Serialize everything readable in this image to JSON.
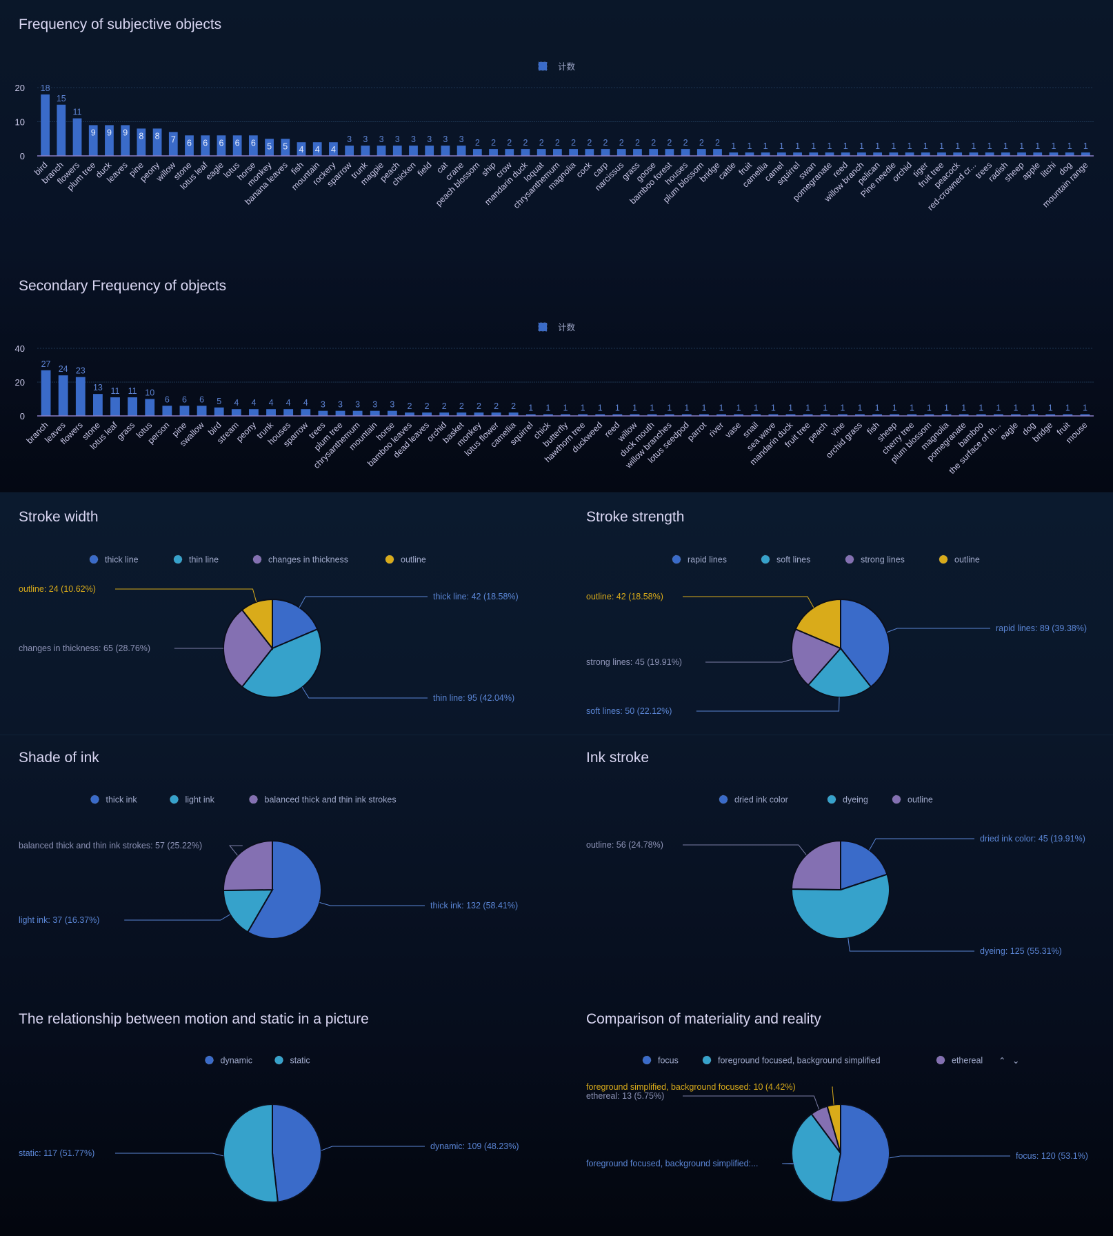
{
  "colors": {
    "blue": "#3a6bc9",
    "cyan": "#36a2cb",
    "purple": "#8470b2",
    "yellow": "#d9ab1a",
    "label_blue": "#5b86d6",
    "label_gray": "#8d93b6"
  },
  "chart_data": [
    {
      "id": "bar1",
      "type": "bar",
      "title": "Frequency of subjective objects",
      "legend": [
        "计数"
      ],
      "legend_position": "top-center",
      "ylim": [
        0,
        20
      ],
      "yticks": [
        0,
        10,
        20
      ],
      "grid": true,
      "categories": [
        "bird",
        "branch",
        "flowers",
        "plum tree",
        "duck",
        "leaves",
        "pine",
        "peony",
        "willow",
        "stone",
        "lotus leaf",
        "eagle",
        "lotus",
        "horse",
        "monkey",
        "banana leaves",
        "fish",
        "mountain",
        "rockery",
        "sparrow",
        "trunk",
        "magpie",
        "peach",
        "chicken",
        "field",
        "cat",
        "crane",
        "peach blossom",
        "ship",
        "crow",
        "mandarin duck",
        "loquat",
        "chrysanthemum",
        "magnolia",
        "cock",
        "carp",
        "narcissus",
        "grass",
        "goose",
        "bamboo forest",
        "houses",
        "plum blossom",
        "bridge",
        "cattle",
        "fruit",
        "camellia",
        "camel",
        "squirrel",
        "swan",
        "pomegranate",
        "reed",
        "willow branch",
        "pelican",
        "Pine needle",
        "orchid",
        "tiger",
        "fruit tree",
        "peacock",
        "red-crowned cr...",
        "trees",
        "radish",
        "sheep",
        "apple",
        "litchi",
        "dog",
        "mountain range"
      ],
      "values": [
        18,
        15,
        11,
        9,
        9,
        9,
        8,
        8,
        7,
        6,
        6,
        6,
        6,
        6,
        5,
        5,
        4,
        4,
        4,
        3,
        3,
        3,
        3,
        3,
        3,
        3,
        3,
        2,
        2,
        2,
        2,
        2,
        2,
        2,
        2,
        2,
        2,
        2,
        2,
        2,
        2,
        2,
        2,
        1,
        1,
        1,
        1,
        1,
        1,
        1,
        1,
        1,
        1,
        1,
        1,
        1,
        1,
        1,
        1,
        1,
        1,
        1,
        1,
        1,
        1,
        1
      ]
    },
    {
      "id": "bar2",
      "type": "bar",
      "title": "Secondary Frequency of objects",
      "legend": [
        "计数"
      ],
      "legend_position": "top-center",
      "ylim": [
        0,
        40
      ],
      "yticks": [
        0,
        20,
        40
      ],
      "grid": true,
      "categories": [
        "branch",
        "leaves",
        "flowers",
        "stone",
        "lotus leaf",
        "grass",
        "lotus",
        "person",
        "pine",
        "swallow",
        "bird",
        "stream",
        "peony",
        "trunk",
        "houses",
        "sparrow",
        "trees",
        "plum tree",
        "chrysanthemum",
        "mountain",
        "horse",
        "bamboo leaves",
        "dead leaves",
        "orchid",
        "basket",
        "monkey",
        "lotus flower",
        "camellia",
        "squirrel",
        "chick",
        "butterfly",
        "hawthorn tree",
        "duckweed",
        "reed",
        "willow",
        "duck mouth",
        "willow branches",
        "lotus seedpod",
        "parrot",
        "river",
        "vase",
        "snail",
        "sea wave",
        "mandarin duck",
        "fruit tree",
        "peach",
        "vine",
        "orchid grass",
        "fish",
        "sheep",
        "cherry tree",
        "plum blossom",
        "magnolia",
        "pomegranate",
        "bamboo",
        "the surface of th...",
        "eagle",
        "dog",
        "bridge",
        "fruit",
        "mouse"
      ],
      "values": [
        27,
        24,
        23,
        13,
        11,
        11,
        10,
        6,
        6,
        6,
        5,
        4,
        4,
        4,
        4,
        4,
        3,
        3,
        3,
        3,
        3,
        2,
        2,
        2,
        2,
        2,
        2,
        2,
        1,
        1,
        1,
        1,
        1,
        1,
        1,
        1,
        1,
        1,
        1,
        1,
        1,
        1,
        1,
        1,
        1,
        1,
        1,
        1,
        1,
        1,
        1,
        1,
        1,
        1,
        1,
        1,
        1,
        1,
        1,
        1,
        1
      ]
    },
    {
      "id": "pie1",
      "type": "pie",
      "title": "Stroke width",
      "legend_position": "top-center",
      "slices": [
        {
          "name": "thick line",
          "value": 42,
          "percent": "18.58%",
          "color": "blue",
          "label": "thick line: 42 (18.58%)"
        },
        {
          "name": "thin line",
          "value": 95,
          "percent": "42.04%",
          "color": "cyan",
          "label": "thin line: 95 (42.04%)"
        },
        {
          "name": "changes in thickness",
          "value": 65,
          "percent": "28.76%",
          "color": "purple",
          "label": "changes in thickness: 65 (28.76%)"
        },
        {
          "name": "outline",
          "value": 24,
          "percent": "10.62%",
          "color": "yellow",
          "label": "outline: 24 (10.62%)"
        }
      ]
    },
    {
      "id": "pie2",
      "type": "pie",
      "title": "Stroke strength",
      "legend_position": "top-center",
      "slices": [
        {
          "name": "rapid lines",
          "value": 89,
          "percent": "39.38%",
          "color": "blue",
          "label": "rapid lines: 89 (39.38%)"
        },
        {
          "name": "soft lines",
          "value": 50,
          "percent": "22.12%",
          "color": "cyan",
          "label": "soft lines: 50 (22.12%)"
        },
        {
          "name": "strong lines",
          "value": 45,
          "percent": "19.91%",
          "color": "purple",
          "label": "strong lines: 45 (19.91%)"
        },
        {
          "name": "outline",
          "value": 42,
          "percent": "18.58%",
          "color": "yellow",
          "label": "outline: 42 (18.58%)"
        }
      ]
    },
    {
      "id": "pie3",
      "type": "pie",
      "title": "Shade of ink",
      "legend_position": "top-center",
      "slices": [
        {
          "name": "thick ink",
          "value": 132,
          "percent": "58.41%",
          "color": "blue",
          "label": "thick ink: 132 (58.41%)"
        },
        {
          "name": "light ink",
          "value": 37,
          "percent": "16.37%",
          "color": "cyan",
          "label": "light ink: 37 (16.37%)"
        },
        {
          "name": "balanced thick and thin ink strokes",
          "value": 57,
          "percent": "25.22%",
          "color": "purple",
          "label": "balanced thick and thin ink strokes: 57 (25.22%)"
        }
      ]
    },
    {
      "id": "pie4",
      "type": "pie",
      "title": "Ink stroke",
      "legend_position": "top-center",
      "slices": [
        {
          "name": "dried ink color",
          "value": 45,
          "percent": "19.91%",
          "color": "blue",
          "label": "dried ink color: 45 (19.91%)"
        },
        {
          "name": "dyeing",
          "value": 125,
          "percent": "55.31%",
          "color": "cyan",
          "label": "dyeing: 125 (55.31%)"
        },
        {
          "name": "outline",
          "value": 56,
          "percent": "24.78%",
          "color": "purple",
          "label": "outline: 56 (24.78%)"
        }
      ]
    },
    {
      "id": "pie5",
      "type": "pie",
      "title": "The relationship between motion and static in a picture",
      "legend_position": "top-center",
      "slices": [
        {
          "name": "dynamic",
          "value": 109,
          "percent": "48.23%",
          "color": "blue",
          "label": "dynamic: 109 (48.23%)"
        },
        {
          "name": "static",
          "value": 117,
          "percent": "51.77%",
          "color": "cyan",
          "label": "static: 117 (51.77%)"
        }
      ]
    },
    {
      "id": "pie6",
      "type": "pie",
      "title": "Comparison of materiality and reality",
      "legend_position": "top-center",
      "legend_paged": true,
      "legend_visible": [
        "focus",
        "foreground focused, background simplified",
        "ethereal"
      ],
      "slices": [
        {
          "name": "focus",
          "value": 120,
          "percent": "53.1%",
          "color": "blue",
          "label": "focus: 120 (53.1%)"
        },
        {
          "name": "foreground focused, background simplified",
          "value": 83,
          "percent": "36.73%",
          "color": "cyan",
          "label": "foreground focused, background simplified:..."
        },
        {
          "name": "ethereal",
          "value": 13,
          "percent": "5.75%",
          "color": "purple",
          "label": "ethereal: 13 (5.75%)"
        },
        {
          "name": "foreground simplified, background focused",
          "value": 10,
          "percent": "4.42%",
          "color": "yellow",
          "label": "foreground simplified, background focused: 10 (4.42%)"
        }
      ]
    }
  ]
}
